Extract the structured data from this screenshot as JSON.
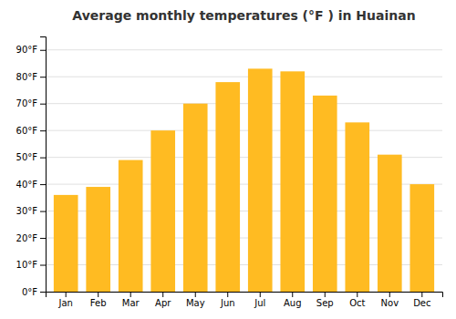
{
  "chart_data": {
    "type": "bar",
    "title": "Average monthly temperatures (°F ) in Huainan",
    "categories": [
      "Jan",
      "Feb",
      "Mar",
      "Apr",
      "May",
      "Jun",
      "Jul",
      "Aug",
      "Sep",
      "Oct",
      "Nov",
      "Dec"
    ],
    "values": [
      36,
      39,
      49,
      60,
      70,
      78,
      83,
      82,
      73,
      63,
      51,
      40
    ],
    "color": "#FFBB22",
    "ylim": [
      0,
      95
    ],
    "yticks": [
      {
        "value": 0,
        "label": "0°F"
      },
      {
        "value": 10,
        "label": "10°F"
      },
      {
        "value": 20,
        "label": "20°F"
      },
      {
        "value": 30,
        "label": "30°F"
      },
      {
        "value": 40,
        "label": "40°F"
      },
      {
        "value": 50,
        "label": "50°F"
      },
      {
        "value": 60,
        "label": "60°F"
      },
      {
        "value": 70,
        "label": "70°F"
      },
      {
        "value": 80,
        "label": "80°F"
      },
      {
        "value": 90,
        "label": "90°F"
      }
    ],
    "grid": true
  }
}
